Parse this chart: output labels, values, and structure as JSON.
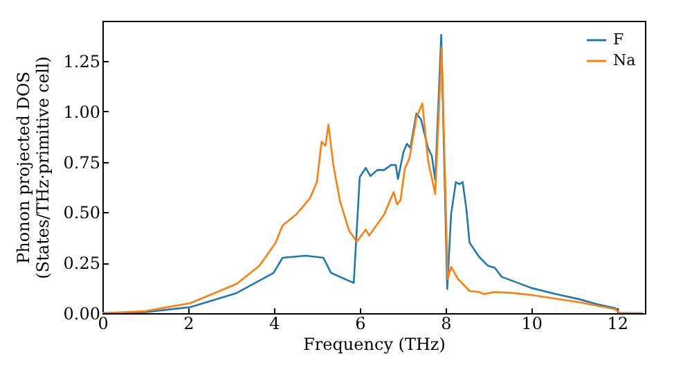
{
  "chart_data": {
    "type": "line",
    "xlabel": "Frequency (THz)",
    "ylabel": "Phonon projected DOS\n(States/THz·primitive cell)",
    "xlim": [
      0,
      12.65
    ],
    "ylim": [
      0,
      1.45
    ],
    "xticks": [
      0,
      2,
      4,
      6,
      8,
      10,
      12
    ],
    "yticks": [
      {
        "value": 0,
        "label": "0.00"
      },
      {
        "value": 0.25,
        "label": "0.25"
      },
      {
        "value": 0.5,
        "label": "0.50"
      },
      {
        "value": 0.75,
        "label": "0.75"
      },
      {
        "value": 1,
        "label": "1.00"
      },
      {
        "value": 1.25,
        "label": "1.25"
      }
    ],
    "legend": "top right",
    "grid": false,
    "series": [
      {
        "name": "F",
        "color": "#1f77b4",
        "x": [
          0,
          1,
          2.05,
          3.13,
          3.99,
          4.2,
          4.74,
          5.15,
          5.33,
          5.86,
          6.0,
          6.14,
          6.25,
          6.41,
          6.57,
          6.73,
          6.84,
          6.89,
          7.02,
          7.1,
          7.18,
          7.32,
          7.43,
          7.59,
          7.68,
          7.76,
          7.9,
          8.04,
          8.13,
          8.24,
          8.33,
          8.4,
          8.49,
          8.56,
          8.78,
          8.99,
          9.15,
          9.31,
          9.69,
          10.0,
          10.56,
          11.1,
          11.53,
          11.96,
          12.06,
          12.6
        ],
        "values": [
          0,
          0.005,
          0.03,
          0.1,
          0.2,
          0.275,
          0.285,
          0.275,
          0.2,
          0.15,
          0.675,
          0.72,
          0.68,
          0.71,
          0.71,
          0.735,
          0.735,
          0.665,
          0.8,
          0.84,
          0.82,
          0.99,
          0.96,
          0.82,
          0.78,
          0.66,
          1.38,
          0.12,
          0.49,
          0.65,
          0.64,
          0.65,
          0.51,
          0.35,
          0.28,
          0.235,
          0.225,
          0.18,
          0.15,
          0.125,
          0.095,
          0.07,
          0.045,
          0.025,
          0,
          0
        ]
      },
      {
        "name": "Na",
        "color": "#ff7f0e",
        "x": [
          0,
          1,
          2.05,
          3.13,
          3.66,
          4.04,
          4.2,
          4.52,
          4.84,
          5.0,
          5.11,
          5.2,
          5.27,
          5.38,
          5.54,
          5.75,
          5.93,
          6.14,
          6.22,
          6.57,
          6.79,
          6.87,
          6.95,
          7.05,
          7.16,
          7.32,
          7.46,
          7.59,
          7.76,
          7.91,
          8.05,
          8.13,
          8.29,
          8.56,
          8.78,
          8.89,
          9.15,
          9.58,
          10.0,
          11.1,
          11.96,
          12.06,
          12.6
        ],
        "values": [
          0,
          0.01,
          0.05,
          0.145,
          0.235,
          0.35,
          0.435,
          0.49,
          0.57,
          0.65,
          0.85,
          0.83,
          0.935,
          0.74,
          0.555,
          0.41,
          0.355,
          0.415,
          0.385,
          0.49,
          0.6,
          0.54,
          0.56,
          0.715,
          0.77,
          0.97,
          1.04,
          0.76,
          0.59,
          1.32,
          0.17,
          0.23,
          0.17,
          0.11,
          0.105,
          0.095,
          0.105,
          0.1,
          0.09,
          0.055,
          0.02,
          0,
          0
        ]
      }
    ]
  }
}
